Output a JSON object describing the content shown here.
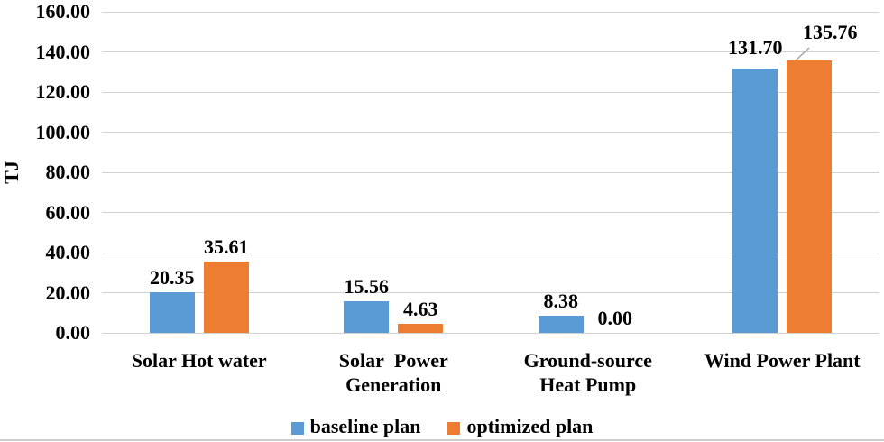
{
  "chart_data": {
    "type": "bar",
    "title": "",
    "xlabel": "",
    "ylabel": "TJ",
    "categories": [
      "Solar Hot water",
      "Solar  Power\nGeneration",
      "Ground-source\nHeat Pump",
      "Wind Power Plant"
    ],
    "series": [
      {
        "name": "baseline plan",
        "color": "#5B9BD5",
        "values": [
          20.35,
          15.56,
          8.38,
          131.7
        ],
        "labels": [
          "20.35",
          "15.56",
          "8.38",
          "131.70"
        ]
      },
      {
        "name": "optimized plan",
        "color": "#ED7D31",
        "values": [
          35.61,
          4.63,
          0,
          135.76
        ],
        "labels": [
          "35.61",
          "4.63",
          "0.00",
          "135.76"
        ]
      }
    ],
    "ylim": [
      0,
      160
    ],
    "ytick_step": 20,
    "ytick_labels": [
      "0.00",
      "20.00",
      "40.00",
      "60.00",
      "80.00",
      "100.00",
      "120.00",
      "140.00",
      "160.00"
    ],
    "grid": true,
    "gridline_color": "#d2d2d2",
    "legend_position": "bottom"
  }
}
